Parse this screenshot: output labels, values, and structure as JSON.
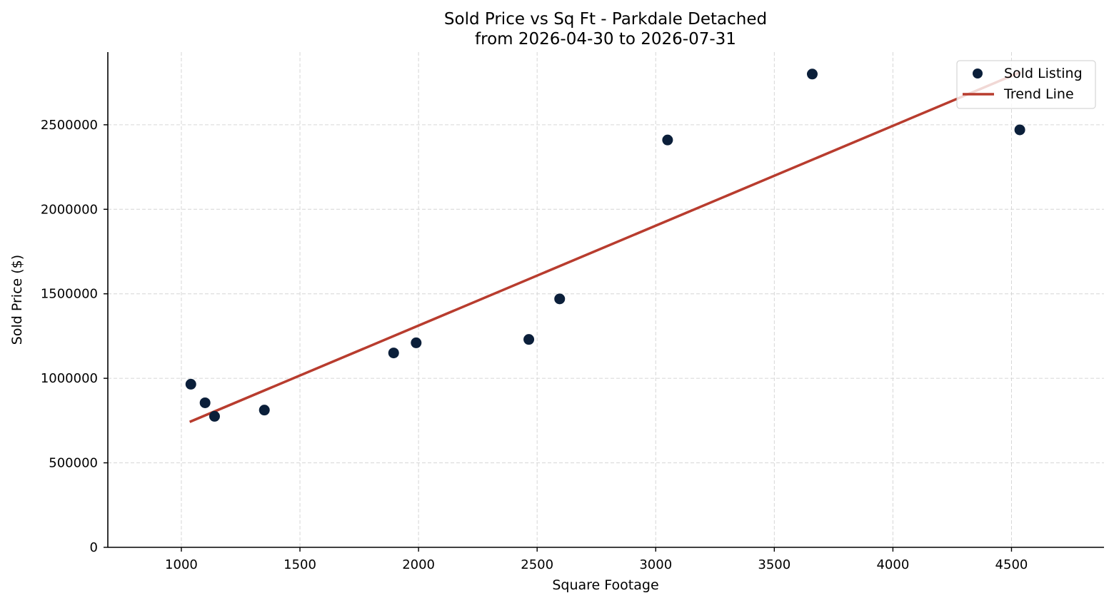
{
  "chart_data": {
    "type": "scatter",
    "title": "Sold Price vs Sq Ft - Parkdale Detached",
    "subtitle": "from 2026-04-30 to 2026-07-31",
    "xlabel": "Square Footage",
    "ylabel": "Sold Price ($)",
    "xlim": [
      690,
      4890
    ],
    "ylim": [
      0,
      2930000
    ],
    "xticks": [
      1000,
      1500,
      2000,
      2500,
      3000,
      3500,
      4000,
      4500
    ],
    "yticks": [
      0,
      500000,
      1000000,
      1500000,
      2000000,
      2500000
    ],
    "grid": true,
    "legend_position": "top-right",
    "series": [
      {
        "name": "Sold Listing",
        "kind": "scatter",
        "color": "#0b1f3a",
        "points": [
          {
            "x": 1040,
            "y": 965000
          },
          {
            "x": 1100,
            "y": 855000
          },
          {
            "x": 1140,
            "y": 775000
          },
          {
            "x": 1350,
            "y": 812000
          },
          {
            "x": 1895,
            "y": 1150000
          },
          {
            "x": 1990,
            "y": 1210000
          },
          {
            "x": 2465,
            "y": 1230000
          },
          {
            "x": 2595,
            "y": 1470000
          },
          {
            "x": 3050,
            "y": 2410000
          },
          {
            "x": 3660,
            "y": 2800000
          },
          {
            "x": 4535,
            "y": 2470000
          }
        ]
      },
      {
        "name": "Trend Line",
        "kind": "line",
        "color": "#b83c2e",
        "points": [
          {
            "x": 1040,
            "y": 745000
          },
          {
            "x": 4535,
            "y": 2810000
          }
        ]
      }
    ]
  }
}
